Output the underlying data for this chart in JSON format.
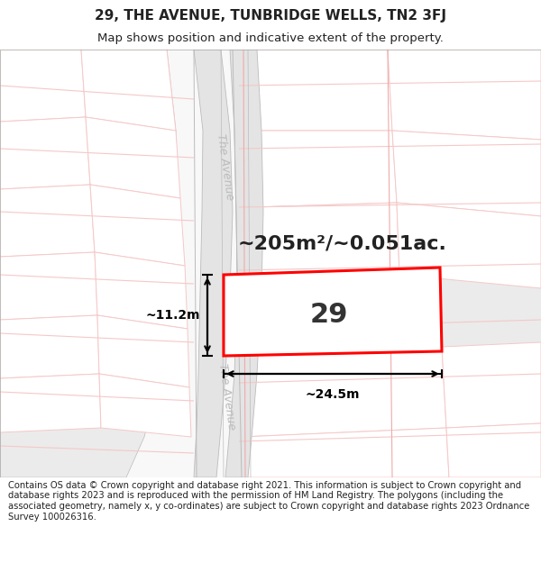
{
  "title": "29, THE AVENUE, TUNBRIDGE WELLS, TN2 3FJ",
  "subtitle": "Map shows position and indicative extent of the property.",
  "footer": "Contains OS data © Crown copyright and database right 2021. This information is subject to Crown copyright and database rights 2023 and is reproduced with the permission of HM Land Registry. The polygons (including the associated geometry, namely x, y co-ordinates) are subject to Crown copyright and database rights 2023 Ordnance Survey 100026316.",
  "area_text": "~205m²/~0.051ac.",
  "plot_number": "29",
  "dim_width": "~24.5m",
  "dim_height": "~11.2m",
  "road_label_upper": "The Avenue",
  "road_label_lower": "The Avenue",
  "title_fontsize": 11,
  "subtitle_fontsize": 9.5,
  "footer_fontsize": 7.2,
  "area_fontsize": 16,
  "plot_num_fontsize": 22,
  "dim_fontsize": 10,
  "road_label_fontsize": 9,
  "white": "#ffffff",
  "near_white": "#f8f8f8",
  "light_gray": "#ebebeb",
  "med_gray": "#e0e0e0",
  "plot_fill": "#e8e8e8",
  "road_fill": "#e4e4e4",
  "boundary_gray": "#bbbbbb",
  "road_pink_light": "#f5c8c8",
  "road_pink_med": "#f0aaaa",
  "red_outline": "#ff0000",
  "black": "#000000",
  "dim_gray": "#222222",
  "road_label_gray": "#bbbbbb"
}
